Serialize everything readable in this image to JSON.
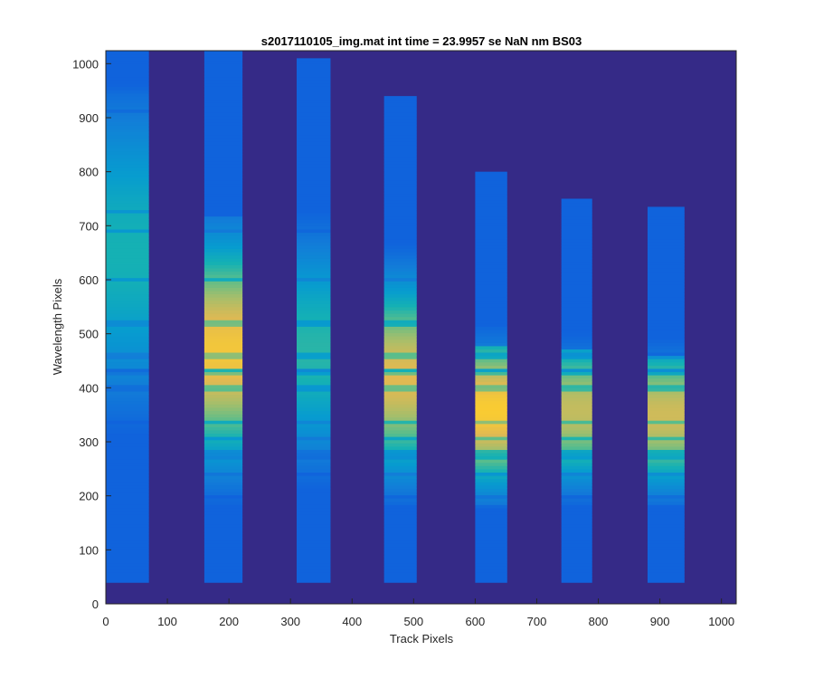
{
  "chart_data": {
    "type": "heatmap",
    "title": "s2017110105_img.mat int time = 23.9957 se  NaN nm BS03",
    "xlabel": "Track Pixels",
    "ylabel": "Wavelength Pixels",
    "xlim": [
      0,
      1024
    ],
    "ylim": [
      0,
      1024
    ],
    "xticks": [
      0,
      100,
      200,
      300,
      400,
      500,
      600,
      700,
      800,
      900,
      1000
    ],
    "yticks": [
      0,
      100,
      200,
      300,
      400,
      500,
      600,
      700,
      800,
      900,
      1000
    ],
    "grid": false,
    "colormap": "parula",
    "colors": {
      "background": "#352a87",
      "tick_text": "#262626",
      "axes_line": "#262626"
    },
    "tracks": [
      {
        "x_start": 0,
        "x_end": 70,
        "y_start": 40,
        "y_end": 1024,
        "peak": 0.55,
        "center": 650,
        "spread": 320,
        "upper_cut": 1024
      },
      {
        "x_start": 160,
        "x_end": 222,
        "y_start": 40,
        "y_end": 1024,
        "peak": 0.9,
        "center": 470,
        "spread": 230,
        "upper_cut": 720
      },
      {
        "x_start": 310,
        "x_end": 365,
        "y_start": 40,
        "y_end": 1010,
        "peak": 0.58,
        "center": 470,
        "spread": 240,
        "upper_cut": 755
      },
      {
        "x_start": 452,
        "x_end": 505,
        "y_start": 40,
        "y_end": 940,
        "peak": 0.85,
        "center": 420,
        "spread": 200,
        "upper_cut": 755
      },
      {
        "x_start": 600,
        "x_end": 652,
        "y_start": 40,
        "y_end": 800,
        "peak": 0.92,
        "center": 360,
        "spread": 160,
        "upper_cut": 480
      },
      {
        "x_start": 740,
        "x_end": 790,
        "y_start": 40,
        "y_end": 750,
        "peak": 0.8,
        "center": 360,
        "spread": 150,
        "upper_cut": 470
      },
      {
        "x_start": 880,
        "x_end": 940,
        "y_start": 40,
        "y_end": 735,
        "peak": 0.82,
        "center": 350,
        "spread": 150,
        "upper_cut": 460
      }
    ]
  }
}
